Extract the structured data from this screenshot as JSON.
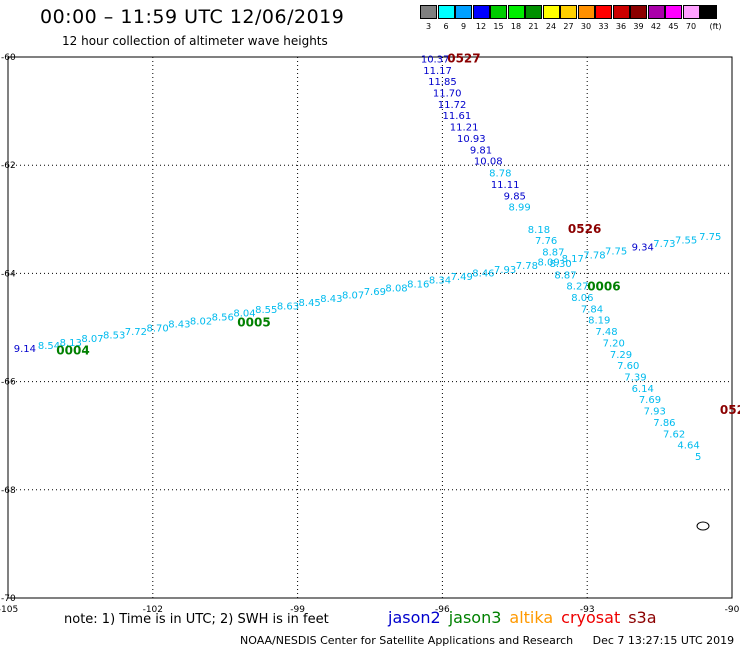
{
  "header": {
    "title": "00:00 – 11:59 UTC 12/06/2019",
    "subtitle": "12 hour collection of altimeter wave heights"
  },
  "legend": {
    "unit": "(ft)",
    "items": [
      {
        "label": "3",
        "color": "#808080"
      },
      {
        "label": "6",
        "color": "#00ffff"
      },
      {
        "label": "9",
        "color": "#00a0ff"
      },
      {
        "label": "12",
        "color": "#0000ff"
      },
      {
        "label": "15",
        "color": "#00cc00"
      },
      {
        "label": "18",
        "color": "#00ee00"
      },
      {
        "label": "21",
        "color": "#009000"
      },
      {
        "label": "24",
        "color": "#ffff00"
      },
      {
        "label": "27",
        "color": "#ffd000"
      },
      {
        "label": "30",
        "color": "#ff9000"
      },
      {
        "label": "33",
        "color": "#ff0000"
      },
      {
        "label": "36",
        "color": "#cc0000"
      },
      {
        "label": "39",
        "color": "#8b0000"
      },
      {
        "label": "42",
        "color": "#aa00aa"
      },
      {
        "label": "45",
        "color": "#ff00ff"
      },
      {
        "label": "70",
        "color": "#ffa0ff"
      },
      {
        "label": "",
        "color": "#000000"
      }
    ]
  },
  "map": {
    "lon_range": [
      -105,
      -90
    ],
    "lat_range": [
      -70,
      -60
    ],
    "lon_ticks": [
      "-105",
      "-102",
      "-99",
      "-96",
      "-93",
      "-90"
    ],
    "lat_ticks": [
      "-60",
      "-62",
      "-64",
      "-66",
      "-68",
      "-70"
    ],
    "tracks": [
      {
        "id": "track-0527",
        "time_label": "0527",
        "time_label_color": "#8b0000",
        "points": [
          {
            "lon": -96.15,
            "lat": -60.1,
            "v": "10.37",
            "c": "#0000cc"
          },
          {
            "lon": -96.1,
            "lat": -60.31,
            "v": "11.17",
            "c": "#0000cc"
          },
          {
            "lon": -96.0,
            "lat": -60.52,
            "v": "11.85",
            "c": "#0000cc"
          },
          {
            "lon": -95.9,
            "lat": -60.73,
            "v": "11.70",
            "c": "#0000cc"
          },
          {
            "lon": -95.8,
            "lat": -60.94,
            "v": "11.72",
            "c": "#0000cc"
          },
          {
            "lon": -95.7,
            "lat": -61.15,
            "v": "11.61",
            "c": "#0000cc"
          },
          {
            "lon": -95.55,
            "lat": -61.36,
            "v": "11.21",
            "c": "#0000cc"
          },
          {
            "lon": -95.4,
            "lat": -61.57,
            "v": "10.93",
            "c": "#0000cc"
          },
          {
            "lon": -95.2,
            "lat": -61.78,
            "v": "9.81",
            "c": "#0000cc"
          },
          {
            "lon": -95.05,
            "lat": -61.99,
            "v": "10.08",
            "c": "#0000cc"
          },
          {
            "lon": -94.8,
            "lat": -62.21,
            "v": "8.78",
            "c": "#00bbee"
          },
          {
            "lon": -94.7,
            "lat": -62.42,
            "v": "11.11",
            "c": "#0000cc"
          },
          {
            "lon": -94.5,
            "lat": -62.63,
            "v": "9.85",
            "c": "#0000cc"
          },
          {
            "lon": -94.4,
            "lat": -62.84,
            "v": "8.99",
            "c": "#00bbee"
          },
          {
            "lon": -94.0,
            "lat": -63.25,
            "v": "8.18",
            "c": "#00bbee"
          },
          {
            "lon": -93.85,
            "lat": -63.46,
            "v": "7.76",
            "c": "#00bbee"
          },
          {
            "lon": -93.7,
            "lat": -63.67,
            "v": "8.87",
            "c": "#00bbee"
          },
          {
            "lon": -93.55,
            "lat": -63.88,
            "v": "8.30",
            "c": "#00bbee"
          },
          {
            "lon": -93.45,
            "lat": -64.09,
            "v": "8.87",
            "c": "#00bbee"
          },
          {
            "lon": -93.2,
            "lat": -64.3,
            "v": "8.27",
            "c": "#00bbee"
          },
          {
            "lon": -93.1,
            "lat": -64.51,
            "v": "8.06",
            "c": "#00bbee"
          },
          {
            "lon": -92.9,
            "lat": -64.72,
            "v": "7.84",
            "c": "#00bbee"
          },
          {
            "lon": -92.75,
            "lat": -64.93,
            "v": "8.19",
            "c": "#00bbee"
          },
          {
            "lon": -92.6,
            "lat": -65.14,
            "v": "7.48",
            "c": "#00bbee"
          },
          {
            "lon": -92.45,
            "lat": -65.35,
            "v": "7.20",
            "c": "#00bbee"
          },
          {
            "lon": -92.3,
            "lat": -65.56,
            "v": "7.29",
            "c": "#00bbee"
          },
          {
            "lon": -92.15,
            "lat": -65.77,
            "v": "7.60",
            "c": "#00bbee"
          },
          {
            "lon": -92.0,
            "lat": -65.98,
            "v": "7.39",
            "c": "#00bbee"
          },
          {
            "lon": -91.85,
            "lat": -66.19,
            "v": "6.14",
            "c": "#00bbee"
          },
          {
            "lon": -91.7,
            "lat": -66.4,
            "v": "7.69",
            "c": "#00bbee"
          },
          {
            "lon": -91.6,
            "lat": -66.61,
            "v": "7.93",
            "c": "#00bbee"
          },
          {
            "lon": -91.4,
            "lat": -66.82,
            "v": "7.86",
            "c": "#00bbee"
          },
          {
            "lon": -91.2,
            "lat": -67.03,
            "v": "7.62",
            "c": "#00bbee"
          },
          {
            "lon": -90.9,
            "lat": -67.24,
            "v": "4.64",
            "c": "#00bbee"
          },
          {
            "lon": -90.7,
            "lat": -67.45,
            "v": "5",
            "c": "#00bbee"
          }
        ]
      },
      {
        "id": "track-0004",
        "time_label": "0004",
        "time_label_color": "#008000",
        "points": [
          {
            "lon": -104.65,
            "lat": -65.45,
            "v": "9.14",
            "c": "#0000cc"
          },
          {
            "lon": -104.15,
            "lat": -65.4,
            "v": "8.54",
            "c": "#00bbee"
          },
          {
            "lon": -103.7,
            "lat": -65.34,
            "v": "8.13",
            "c": "#00bbee"
          },
          {
            "lon": -103.25,
            "lat": -65.27,
            "v": "8.07",
            "c": "#00bbee"
          },
          {
            "lon": -102.8,
            "lat": -65.2,
            "v": "8.53",
            "c": "#00bbee"
          },
          {
            "lon": -102.35,
            "lat": -65.14,
            "v": "7.72",
            "c": "#00bbee"
          },
          {
            "lon": -101.9,
            "lat": -65.07,
            "v": "8.70",
            "c": "#00bbee"
          },
          {
            "lon": -101.45,
            "lat": -65.0,
            "v": "8.43",
            "c": "#00bbee"
          },
          {
            "lon": -101.0,
            "lat": -64.94,
            "v": "8.02",
            "c": "#00bbee"
          },
          {
            "lon": -100.55,
            "lat": -64.87,
            "v": "8.56",
            "c": "#00bbee"
          },
          {
            "lon": -100.1,
            "lat": -64.8,
            "v": "8.04",
            "c": "#00bbee"
          },
          {
            "lon": -99.65,
            "lat": -64.73,
            "v": "8.55",
            "c": "#00bbee"
          },
          {
            "lon": -99.2,
            "lat": -64.67,
            "v": "8.63",
            "c": "#00bbee"
          },
          {
            "lon": -98.75,
            "lat": -64.6,
            "v": "8.45",
            "c": "#00bbee"
          },
          {
            "lon": -98.3,
            "lat": -64.53,
            "v": "8.43",
            "c": "#00bbee"
          },
          {
            "lon": -97.85,
            "lat": -64.46,
            "v": "8.07",
            "c": "#00bbee"
          },
          {
            "lon": -97.4,
            "lat": -64.4,
            "v": "7.69",
            "c": "#00bbee"
          },
          {
            "lon": -96.95,
            "lat": -64.33,
            "v": "8.08",
            "c": "#00bbee"
          },
          {
            "lon": -96.5,
            "lat": -64.26,
            "v": "8.16",
            "c": "#00bbee"
          },
          {
            "lon": -96.05,
            "lat": -64.19,
            "v": "8.34",
            "c": "#00bbee"
          },
          {
            "lon": -95.6,
            "lat": -64.12,
            "v": "7.49",
            "c": "#00bbee"
          },
          {
            "lon": -95.15,
            "lat": -64.06,
            "v": "8.46",
            "c": "#00bbee"
          },
          {
            "lon": -94.7,
            "lat": -63.99,
            "v": "7.93",
            "c": "#00bbee"
          },
          {
            "lon": -94.25,
            "lat": -63.92,
            "v": "7.78",
            "c": "#00bbee"
          },
          {
            "lon": -93.8,
            "lat": -63.85,
            "v": "8.09",
            "c": "#00bbee"
          },
          {
            "lon": -93.3,
            "lat": -63.79,
            "v": "8.17",
            "c": "#00bbee"
          },
          {
            "lon": -92.85,
            "lat": -63.72,
            "v": "7.78",
            "c": "#00bbee"
          },
          {
            "lon": -92.4,
            "lat": -63.65,
            "v": "7.75",
            "c": "#00bbee"
          },
          {
            "lon": -91.85,
            "lat": -63.58,
            "v": "9.34",
            "c": "#0000cc"
          },
          {
            "lon": -91.4,
            "lat": -63.51,
            "v": "7.73",
            "c": "#00bbee"
          },
          {
            "lon": -90.95,
            "lat": -63.45,
            "v": "7.55",
            "c": "#00bbee"
          },
          {
            "lon": -90.45,
            "lat": -63.38,
            "v": "7.75",
            "c": "#00bbee"
          }
        ]
      }
    ],
    "markers": [
      {
        "text": "0527",
        "lon": -95.9,
        "lat": -60.1,
        "color": "#8b0000"
      },
      {
        "text": "0526",
        "lon": -93.4,
        "lat": -63.25,
        "color": "#8b0000"
      },
      {
        "text": "0004",
        "lon": -104.0,
        "lat": -65.5,
        "color": "#008000"
      },
      {
        "text": "0005",
        "lon": -100.25,
        "lat": -64.98,
        "color": "#008000"
      },
      {
        "text": "0006",
        "lon": -93.0,
        "lat": -64.32,
        "color": "#008000"
      },
      {
        "text": "052",
        "lon": -90.25,
        "lat": -66.6,
        "color": "#8b0000"
      }
    ]
  },
  "footer": {
    "note": "note: 1) Time is in UTC; 2) SWH is in feet",
    "satellites": [
      {
        "name": "jason2",
        "color": "#0000cc"
      },
      {
        "name": "jason3",
        "color": "#008000"
      },
      {
        "name": "altika",
        "color": "#ff9900"
      },
      {
        "name": "cryosat",
        "color": "#ee0000"
      },
      {
        "name": "s3a",
        "color": "#8b0000"
      }
    ],
    "credit": "NOAA/NESDIS Center for Satellite Applications and Research",
    "timestamp": "Dec  7 13:27:15 UTC 2019"
  }
}
